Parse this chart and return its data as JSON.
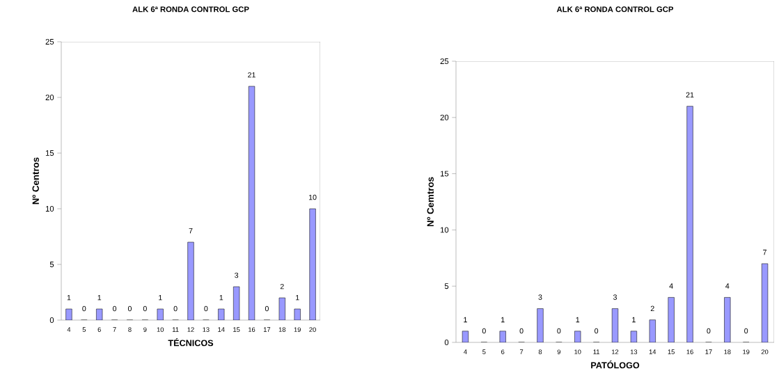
{
  "chart_data": [
    {
      "type": "bar",
      "title": "ALK 6ª RONDA CONTROL GCP",
      "xlabel": "TÉCNICOS",
      "ylabel": "Nº Centros",
      "categories": [
        "4",
        "5",
        "6",
        "7",
        "8",
        "9",
        "10",
        "11",
        "12",
        "13",
        "14",
        "15",
        "16",
        "17",
        "18",
        "19",
        "20"
      ],
      "values": [
        1,
        0,
        1,
        0,
        0,
        0,
        1,
        0,
        7,
        0,
        1,
        3,
        21,
        0,
        2,
        1,
        10
      ],
      "color": "#9999ff",
      "ylim": [
        0,
        25
      ],
      "yticks": [
        0,
        5,
        10,
        15,
        20,
        25
      ],
      "data_labels": true
    },
    {
      "type": "bar",
      "title": "ALK 6ª RONDA CONTROL GCP",
      "xlabel": "PATÓLOGO",
      "ylabel": "Nº Cemtros",
      "categories": [
        "4",
        "5",
        "6",
        "7",
        "8",
        "9",
        "10",
        "11",
        "12",
        "13",
        "14",
        "15",
        "16",
        "17",
        "18",
        "19",
        "20"
      ],
      "values": [
        1,
        0,
        1,
        0,
        3,
        0,
        1,
        0,
        3,
        1,
        2,
        4,
        21,
        0,
        4,
        0,
        7
      ],
      "color": "#9999ff",
      "ylim": [
        0,
        25
      ],
      "yticks": [
        0,
        5,
        10,
        15,
        20,
        25
      ],
      "data_labels": true
    }
  ]
}
